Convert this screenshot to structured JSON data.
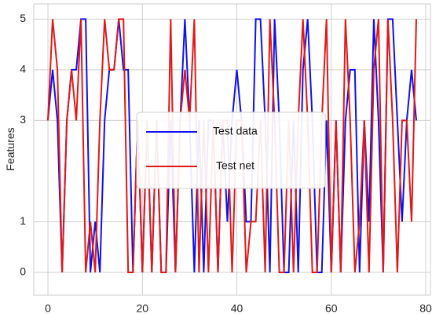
{
  "chart_data": {
    "type": "line",
    "ylabel": "Features",
    "xlabel": "",
    "title": "",
    "xlim": [
      -3,
      81
    ],
    "ylim": [
      -0.45,
      5.3
    ],
    "xticks": [
      0,
      20,
      40,
      60,
      80
    ],
    "yticks": [
      0,
      1,
      3,
      4,
      5
    ],
    "grid": true,
    "legend_position": "center-right",
    "series": [
      {
        "name": "Test data",
        "color": "#1010ee",
        "width": 2,
        "x": [
          0,
          1,
          2,
          3,
          4,
          5,
          6,
          7,
          8,
          9,
          10,
          11,
          12,
          13,
          14,
          15,
          16,
          17,
          18,
          19,
          20,
          21,
          22,
          23,
          24,
          25,
          26,
          27,
          28,
          29,
          30,
          31,
          32,
          33,
          34,
          35,
          36,
          37,
          38,
          39,
          40,
          41,
          42,
          43,
          44,
          45,
          46,
          47,
          48,
          49,
          50,
          51,
          52,
          53,
          54,
          55,
          56,
          57,
          58,
          59,
          60,
          61,
          62,
          63,
          64,
          65,
          66,
          67,
          68,
          69,
          70,
          71,
          72,
          73,
          74,
          75,
          76,
          77,
          78
        ],
        "y": [
          3,
          4,
          3,
          0,
          3,
          4,
          4,
          5,
          5,
          0,
          1,
          0,
          3,
          4,
          4,
          5,
          4,
          4,
          0,
          3,
          0,
          3,
          0,
          3,
          0,
          0,
          3,
          0,
          3,
          5,
          3,
          0,
          3,
          0,
          3,
          3,
          0,
          3,
          1,
          3,
          4,
          3,
          1,
          1,
          5,
          5,
          3,
          0,
          5,
          3,
          0,
          0,
          3,
          0,
          4,
          5,
          3,
          0,
          0,
          3,
          0,
          3,
          0,
          3,
          4,
          4,
          0,
          3,
          1,
          5,
          3,
          0,
          5,
          5,
          3,
          1,
          3,
          4,
          3
        ]
      },
      {
        "name": "Test net",
        "color": "#e01818",
        "width": 2,
        "x": [
          0,
          1,
          2,
          3,
          4,
          5,
          6,
          7,
          8,
          9,
          10,
          11,
          12,
          13,
          14,
          15,
          16,
          17,
          18,
          19,
          20,
          21,
          22,
          23,
          24,
          25,
          26,
          27,
          28,
          29,
          30,
          31,
          32,
          33,
          34,
          35,
          36,
          37,
          38,
          39,
          40,
          41,
          42,
          43,
          44,
          45,
          46,
          47,
          48,
          49,
          50,
          51,
          52,
          53,
          54,
          55,
          56,
          57,
          58,
          59,
          60,
          61,
          62,
          63,
          64,
          65,
          66,
          67,
          68,
          69,
          70,
          71,
          72,
          73,
          74,
          75,
          76,
          77,
          78
        ],
        "y": [
          3,
          5,
          4,
          0,
          3,
          4,
          3,
          5,
          0,
          1,
          0,
          3,
          5,
          4,
          4,
          5,
          5,
          0,
          0,
          3,
          0,
          3,
          0,
          3,
          0,
          0,
          5,
          0,
          3,
          4,
          3,
          5,
          0,
          3,
          0,
          3,
          0,
          3,
          3,
          0,
          3,
          3,
          0,
          1,
          1,
          3,
          0,
          5,
          3,
          0,
          0,
          3,
          0,
          3,
          5,
          3,
          0,
          0,
          3,
          5,
          0,
          3,
          0,
          5,
          3,
          0,
          1,
          3,
          0,
          4,
          5,
          0,
          5,
          3,
          0,
          3,
          3,
          1,
          5
        ]
      }
    ],
    "legend": {
      "entries": [
        "Test data",
        "Test net"
      ]
    }
  }
}
